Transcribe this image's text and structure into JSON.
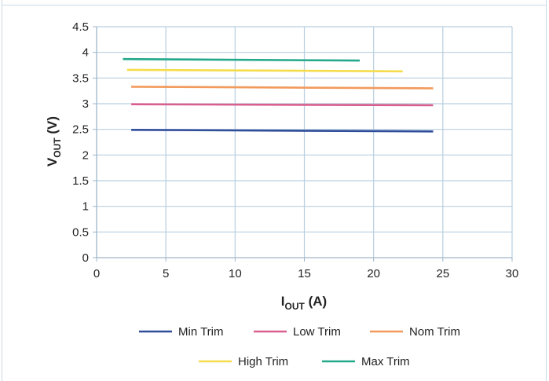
{
  "chart_data": {
    "type": "line",
    "title": "",
    "xlabel": {
      "main": "I",
      "sub": "OUT",
      "unit": " (A)"
    },
    "ylabel": {
      "main": "V",
      "sub": "OUT",
      "unit": " (V)"
    },
    "xlim": [
      0,
      30
    ],
    "ylim": [
      0,
      4.5
    ],
    "xticks": [
      "0",
      "5",
      "10",
      "15",
      "20",
      "25",
      "30"
    ],
    "yticks": [
      "0",
      "0.5",
      "1",
      "1.5",
      "2",
      "2.5",
      "3",
      "3.5",
      "4",
      "4.5"
    ],
    "grid": true,
    "legend_position": "bottom",
    "series": [
      {
        "name": "Min Trim",
        "color": "#2e4d9a",
        "x": [
          2.5,
          24.3
        ],
        "y": [
          2.49,
          2.46
        ]
      },
      {
        "name": "Low Trim",
        "color": "#d9608e",
        "x": [
          2.5,
          24.3
        ],
        "y": [
          2.99,
          2.97
        ]
      },
      {
        "name": "Nom Trim",
        "color": "#f29a5c",
        "x": [
          2.5,
          24.3
        ],
        "y": [
          3.33,
          3.3
        ]
      },
      {
        "name": "High Trim",
        "color": "#f5dc4a",
        "x": [
          2.2,
          22.1
        ],
        "y": [
          3.66,
          3.63
        ]
      },
      {
        "name": "Max Trim",
        "color": "#23a88b",
        "x": [
          1.9,
          19.0
        ],
        "y": [
          3.87,
          3.84
        ]
      }
    ]
  }
}
